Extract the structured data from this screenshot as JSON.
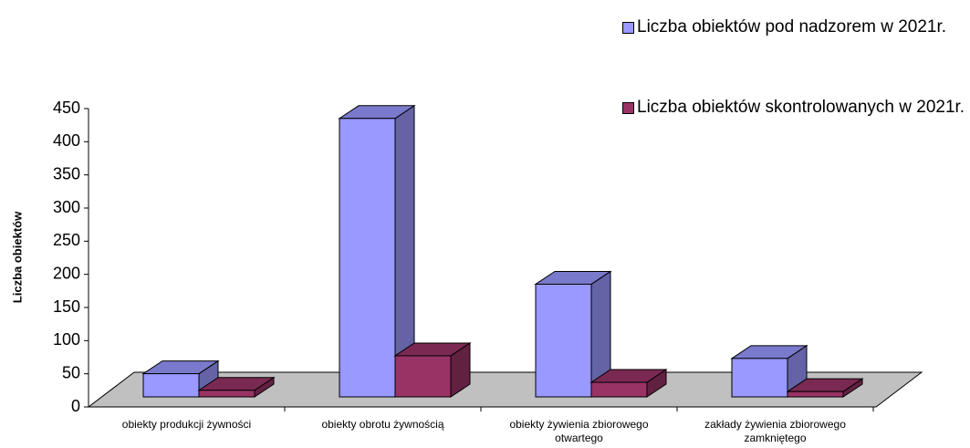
{
  "chart_data": {
    "type": "bar3d",
    "y_label": "Liczba obiektów",
    "categories": [
      "obiekty produkcji żywności",
      "obiekty obrotu żywnością",
      "obiekty żywienia zbiorowego otwartego",
      "zakłady żywienia zbiorowego zamkniętego"
    ],
    "series": [
      {
        "name": "Liczba obiektów pod nadzorem w 2021r.",
        "color": "#9999ff",
        "values": [
          35,
          420,
          170,
          58
        ]
      },
      {
        "name": "Liczba obiektów skontrolowanych w 2021r.",
        "color": "#993366",
        "values": [
          10,
          62,
          22,
          8
        ]
      }
    ],
    "ylim": [
      0,
      450
    ],
    "yticks": [
      0,
      50,
      100,
      150,
      200,
      250,
      300,
      350,
      400,
      450
    ]
  }
}
